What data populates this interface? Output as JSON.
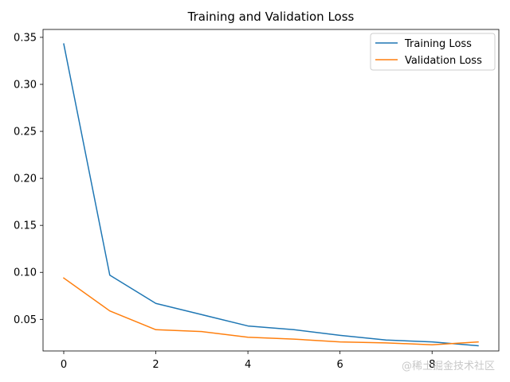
{
  "chart_data": {
    "type": "line",
    "title": "Training and Validation Loss",
    "xlabel": "",
    "ylabel": "",
    "x": [
      0,
      1,
      2,
      3,
      4,
      5,
      6,
      7,
      8,
      9
    ],
    "xlim": [
      -0.45,
      9.45
    ],
    "ylim": [
      0.0164,
      0.3584
    ],
    "xticks": [
      0,
      2,
      4,
      6,
      8
    ],
    "xtick_labels": [
      "0",
      "2",
      "4",
      "6",
      "8"
    ],
    "yticks": [
      0.05,
      0.1,
      0.15,
      0.2,
      0.25,
      0.3,
      0.35
    ],
    "ytick_labels": [
      "0.05",
      "0.10",
      "0.15",
      "0.20",
      "0.25",
      "0.30",
      "0.35"
    ],
    "grid": false,
    "legend_position": "top-right",
    "series": [
      {
        "name": "Training Loss",
        "color": "#1f77b4",
        "values": [
          0.343,
          0.097,
          0.067,
          0.055,
          0.043,
          0.039,
          0.033,
          0.028,
          0.026,
          0.022
        ]
      },
      {
        "name": "Validation Loss",
        "color": "#ff7f0e",
        "values": [
          0.094,
          0.059,
          0.039,
          0.037,
          0.031,
          0.029,
          0.026,
          0.025,
          0.023,
          0.026
        ]
      }
    ]
  },
  "watermark": {
    "text": "@稀土掘金技术社区"
  }
}
